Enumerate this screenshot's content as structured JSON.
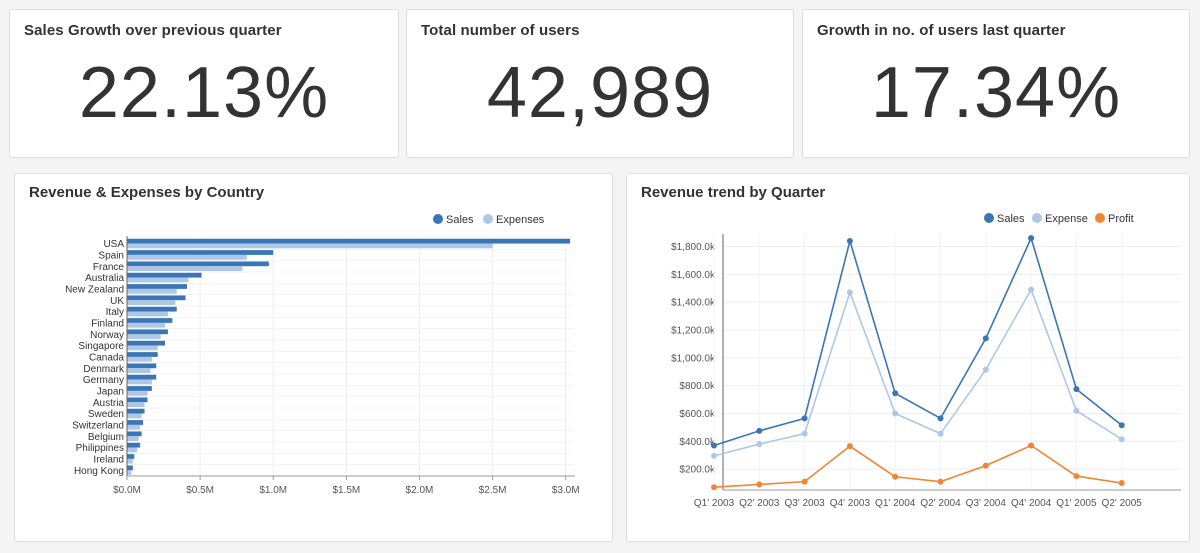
{
  "kpis": [
    {
      "title": "Sales Growth over previous quarter",
      "value": "22.13%"
    },
    {
      "title": "Total number of users",
      "value": "42,989"
    },
    {
      "title": "Growth in no. of users last quarter",
      "value": "17.34%"
    }
  ],
  "colors": {
    "sales": "#3a75b6",
    "expenses": "#aec7e8",
    "profit": "#f08534"
  },
  "chart_data": [
    {
      "type": "bar",
      "orientation": "horizontal",
      "title": "Revenue & Expenses by Country",
      "legend_position": "top-right",
      "categories": [
        "USA",
        "Spain",
        "France",
        "Australia",
        "New Zealand",
        "UK",
        "Italy",
        "Finland",
        "Norway",
        "Singapore",
        "Canada",
        "Denmark",
        "Germany",
        "Japan",
        "Austria",
        "Sweden",
        "Switzerland",
        "Belgium",
        "Philippines",
        "Ireland",
        "Hong Kong"
      ],
      "series": [
        {
          "name": "Sales",
          "values": [
            3.03,
            1.0,
            0.97,
            0.51,
            0.41,
            0.4,
            0.34,
            0.31,
            0.28,
            0.26,
            0.21,
            0.2,
            0.2,
            0.17,
            0.14,
            0.12,
            0.11,
            0.1,
            0.09,
            0.05,
            0.04
          ]
        },
        {
          "name": "Expenses",
          "values": [
            2.5,
            0.82,
            0.79,
            0.42,
            0.34,
            0.33,
            0.28,
            0.26,
            0.23,
            0.21,
            0.17,
            0.16,
            0.17,
            0.14,
            0.12,
            0.1,
            0.09,
            0.08,
            0.07,
            0.04,
            0.03
          ]
        }
      ],
      "xlim": [
        0,
        3.05
      ],
      "tick_values": [
        0,
        0.5,
        1.0,
        1.5,
        2.0,
        2.5,
        3.0
      ],
      "tick_labels": [
        "$0.0M",
        "$0.5M",
        "$1.0M",
        "$1.5M",
        "$2.0M",
        "$2.5M",
        "$3.0M"
      ],
      "grid": true
    },
    {
      "type": "line",
      "title": "Revenue trend by Quarter",
      "legend_position": "top-right",
      "categories": [
        "Q1' 2003",
        "Q2' 2003",
        "Q3' 2003",
        "Q4' 2003",
        "Q1' 2004",
        "Q2' 2004",
        "Q3' 2004",
        "Q4' 2004",
        "Q1' 2005",
        "Q2' 2005"
      ],
      "series": [
        {
          "name": "Sales",
          "values": [
            370,
            475,
            565,
            1840,
            745,
            565,
            1140,
            1860,
            775,
            515
          ]
        },
        {
          "name": "Expense",
          "values": [
            295,
            380,
            455,
            1470,
            600,
            455,
            915,
            1490,
            620,
            415
          ]
        },
        {
          "name": "Profit",
          "values": [
            70,
            90,
            110,
            365,
            145,
            110,
            225,
            370,
            150,
            100
          ]
        }
      ],
      "ylim": [
        50,
        1890
      ],
      "tick_values": [
        200,
        400,
        600,
        800,
        1000,
        1200,
        1400,
        1600,
        1800
      ],
      "tick_labels": [
        "$200.0k",
        "$400.0k",
        "$600.0k",
        "$800.0k",
        "$1,000.0k",
        "$1,200.0k",
        "$1,400.0k",
        "$1,600.0k",
        "$1,800.0k"
      ],
      "grid": true
    }
  ]
}
